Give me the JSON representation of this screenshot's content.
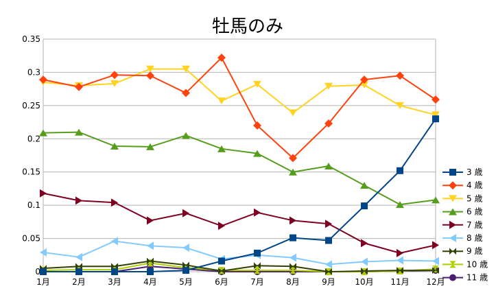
{
  "chart_data": {
    "type": "line",
    "title": "牡馬のみ",
    "xlabel": "",
    "ylabel": "",
    "categories": [
      "1月",
      "2月",
      "3月",
      "4月",
      "5月",
      "6月",
      "7月",
      "8月",
      "9月",
      "10月",
      "11月",
      "12月"
    ],
    "ylim": [
      0,
      0.35
    ],
    "yticks": [
      0,
      0.05,
      0.1,
      0.15,
      0.2,
      0.25,
      0.3,
      0.35
    ],
    "ytick_labels": [
      "0",
      "0.05",
      "0.1",
      "0.15",
      "0.2",
      "0.25",
      "0.3",
      "0.35"
    ],
    "grid": "horizontal",
    "legend_position": "right",
    "series": [
      {
        "name": "3 歳",
        "color": "#004586",
        "marker": "square",
        "values": [
          0,
          0,
          0,
          0,
          0.002,
          0.016,
          0.028,
          0.051,
          0.047,
          0.099,
          0.152,
          0.23
        ]
      },
      {
        "name": "4 歳",
        "color": "#ff420e",
        "marker": "diamond",
        "values": [
          0.289,
          0.278,
          0.296,
          0.295,
          0.269,
          0.322,
          0.22,
          0.171,
          0.223,
          0.289,
          0.295,
          0.259
        ]
      },
      {
        "name": "5 歳",
        "color": "#ffd320",
        "marker": "triangle-down",
        "values": [
          0.285,
          0.28,
          0.283,
          0.305,
          0.305,
          0.257,
          0.282,
          0.239,
          0.279,
          0.281,
          0.25,
          0.236
        ]
      },
      {
        "name": "6 歳",
        "color": "#579d1c",
        "marker": "triangle-up",
        "values": [
          0.209,
          0.21,
          0.189,
          0.188,
          0.205,
          0.185,
          0.178,
          0.15,
          0.159,
          0.13,
          0.101,
          0.108
        ]
      },
      {
        "name": "7 歳",
        "color": "#7e0021",
        "marker": "triangle-right",
        "values": [
          0.118,
          0.107,
          0.104,
          0.077,
          0.088,
          0.069,
          0.089,
          0.077,
          0.072,
          0.043,
          0.028,
          0.04
        ]
      },
      {
        "name": "8 歳",
        "color": "#83caff",
        "marker": "triangle-left",
        "values": [
          0.029,
          0.022,
          0.046,
          0.039,
          0.036,
          0.019,
          0.025,
          0.021,
          0.011,
          0.015,
          0.017,
          0.016
        ]
      },
      {
        "name": "9 歳",
        "color": "#314004",
        "marker": "bowtie",
        "values": [
          0.005,
          0.008,
          0.008,
          0.016,
          0.01,
          0.001,
          0.009,
          0.008,
          0.0,
          0.001,
          0.002,
          0.002
        ]
      },
      {
        "name": "10 歳",
        "color": "#aecf00",
        "marker": "hourglass",
        "values": [
          0.002,
          0.003,
          0.003,
          0.013,
          0.006,
          0.002,
          0.002,
          0.002,
          0.0,
          0.0,
          0.001,
          0.004
        ]
      },
      {
        "name": "11 歳",
        "color": "#4b1f6f",
        "marker": "circle",
        "values": [
          0.0,
          0.0,
          0.0,
          0.008,
          0.004,
          0.0,
          0.0,
          0.0,
          0.0,
          0.0,
          0.001,
          0.002
        ]
      }
    ]
  }
}
